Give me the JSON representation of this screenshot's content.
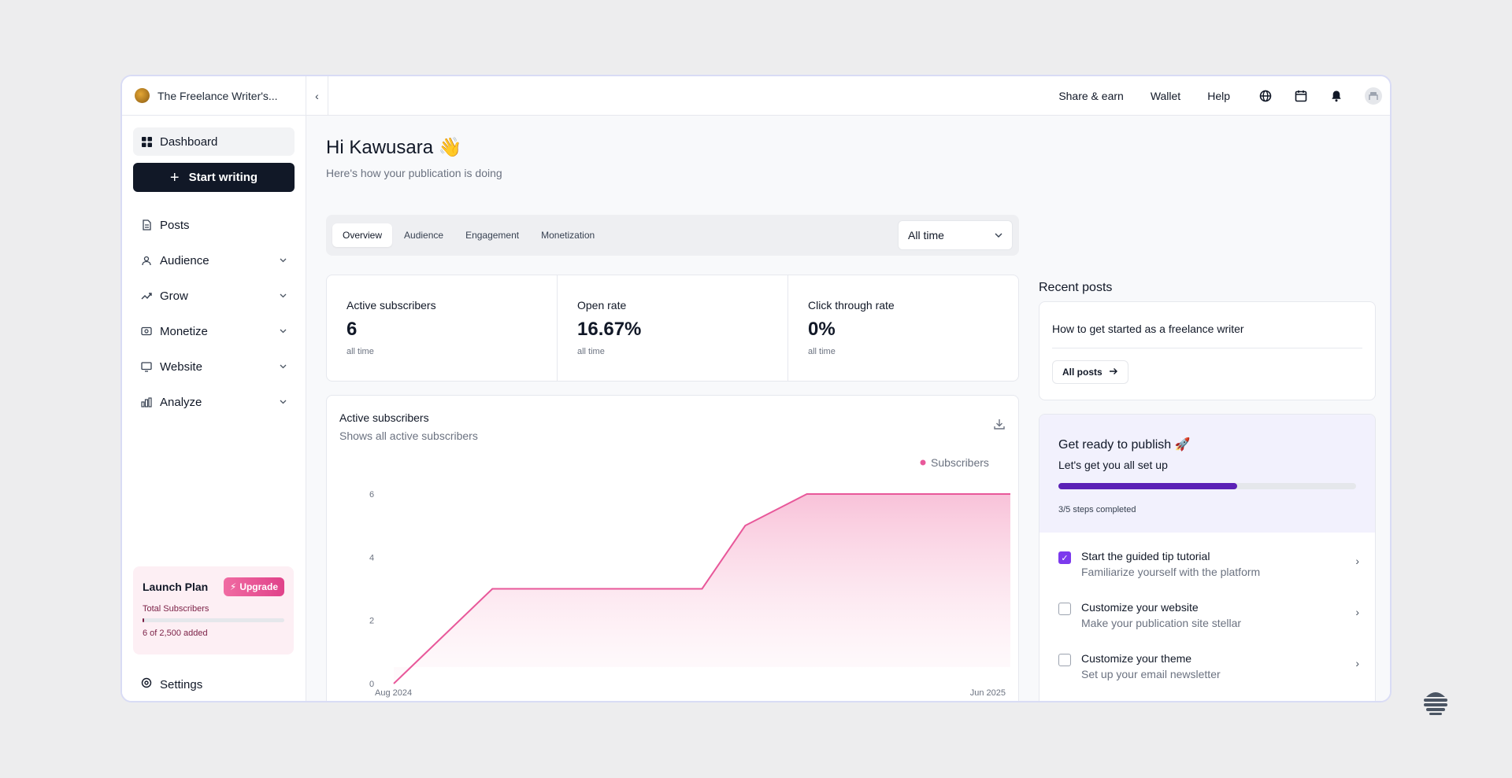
{
  "publication": {
    "name": "The Freelance Writer's..."
  },
  "sidebar": {
    "dashboard": "Dashboard",
    "start_writing": "Start writing",
    "items": [
      {
        "label": "Posts",
        "icon": "posts-icon",
        "chevron": false
      },
      {
        "label": "Audience",
        "icon": "audience-icon",
        "chevron": true
      },
      {
        "label": "Grow",
        "icon": "grow-icon",
        "chevron": true
      },
      {
        "label": "Monetize",
        "icon": "monetize-icon",
        "chevron": true
      },
      {
        "label": "Website",
        "icon": "website-icon",
        "chevron": true
      },
      {
        "label": "Analyze",
        "icon": "analyze-icon",
        "chevron": true
      }
    ],
    "launch": {
      "plan": "Launch Plan",
      "upgrade": "Upgrade",
      "label": "Total Subscribers",
      "count": "6 of 2,500 added",
      "progress": 0.0024
    },
    "settings": "Settings"
  },
  "topbar": {
    "links": [
      "Share & earn",
      "Wallet",
      "Help"
    ],
    "icons": [
      "globe-icon",
      "calendar-icon",
      "bell-icon"
    ]
  },
  "greeting": {
    "title": "Hi Kawusara 👋",
    "subtitle": "Here's how your publication is doing"
  },
  "tabs": [
    "Overview",
    "Audience",
    "Engagement",
    "Monetization"
  ],
  "time_filter": "All time",
  "stats": [
    {
      "label": "Active subscribers",
      "value": "6",
      "sub": "all time"
    },
    {
      "label": "Open rate",
      "value": "16.67%",
      "sub": "all time"
    },
    {
      "label": "Click through rate",
      "value": "0%",
      "sub": "all time"
    }
  ],
  "chart_card": {
    "title": "Active subscribers",
    "subtitle": "Shows all active subscribers"
  },
  "chart_data": {
    "type": "area",
    "x_labels": [
      "Aug 2024",
      "Jun 2025"
    ],
    "y_ticks": [
      "0",
      "2",
      "4",
      "6"
    ],
    "ylim": [
      0,
      6
    ],
    "series": [
      {
        "name": "Subscribers",
        "color": "#e8589a",
        "x": [
          0,
          0.16,
          0.5,
          0.57,
          0.67,
          1.0
        ],
        "values": [
          0,
          3,
          3,
          5,
          6,
          6
        ]
      }
    ],
    "legend": "top-right"
  },
  "recent": {
    "title": "Recent posts",
    "post": "How to get started as a freelance writer",
    "all_posts": "All posts"
  },
  "publish": {
    "title": "Get ready to publish 🚀",
    "subtitle": "Let's get you all set up",
    "progress": 0.6,
    "progress_text": "3/5 steps completed",
    "items": [
      {
        "title": "Start the guided tip tutorial",
        "sub": "Familiarize yourself with the platform",
        "checked": true
      },
      {
        "title": "Customize your website",
        "sub": "Make your publication site stellar",
        "checked": false
      },
      {
        "title": "Customize your theme",
        "sub": "Set up your email newsletter",
        "checked": false
      }
    ]
  },
  "colors": {
    "accent": "#111827",
    "pink": "#e8589a",
    "purple": "#5b21b6",
    "check": "#7c3aed"
  }
}
